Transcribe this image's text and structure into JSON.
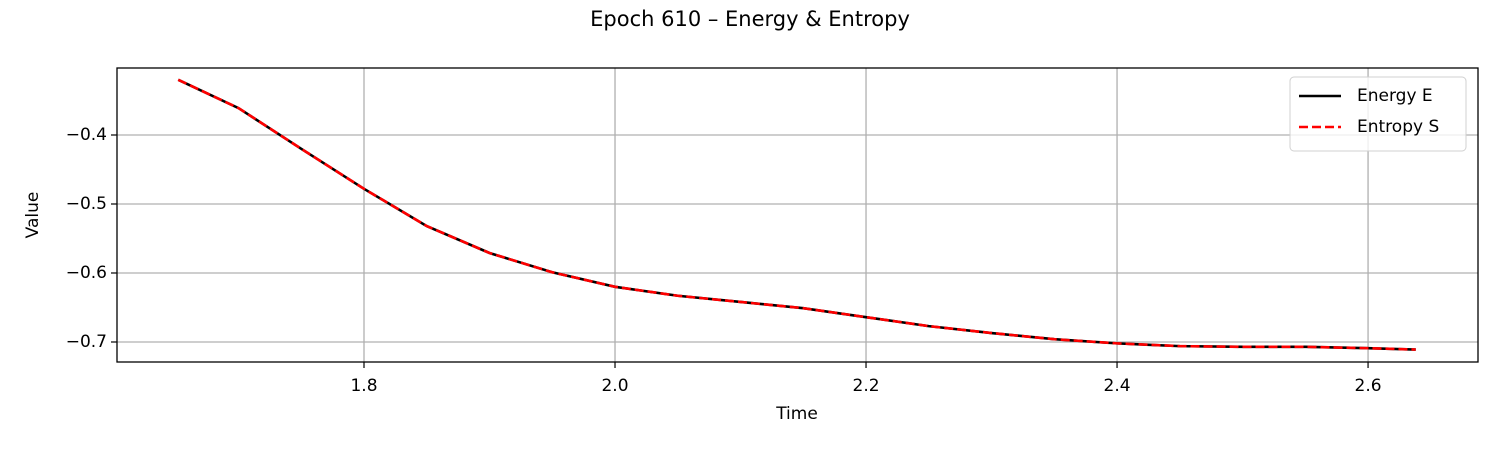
{
  "chart_data": {
    "type": "line",
    "title": "Epoch 610 – Energy & Entropy",
    "xlabel": "Time",
    "ylabel": "Value",
    "x": [
      1.652,
      1.7,
      1.75,
      1.8,
      1.85,
      1.9,
      1.95,
      2.0,
      2.05,
      2.1,
      2.15,
      2.2,
      2.25,
      2.3,
      2.35,
      2.4,
      2.45,
      2.5,
      2.55,
      2.6,
      2.638
    ],
    "series": [
      {
        "name": "Energy E",
        "color": "#000000",
        "dash": "solid",
        "values": [
          -0.32,
          -0.361,
          -0.42,
          -0.478,
          -0.532,
          -0.571,
          -0.599,
          -0.62,
          -0.633,
          -0.642,
          -0.651,
          -0.664,
          -0.677,
          -0.687,
          -0.696,
          -0.702,
          -0.706,
          -0.707,
          -0.707,
          -0.709,
          -0.711
        ]
      },
      {
        "name": "Entropy S",
        "color": "#ff0000",
        "dash": "dashed",
        "values": [
          -0.32,
          -0.361,
          -0.42,
          -0.478,
          -0.532,
          -0.571,
          -0.599,
          -0.62,
          -0.633,
          -0.642,
          -0.651,
          -0.664,
          -0.677,
          -0.687,
          -0.696,
          -0.702,
          -0.706,
          -0.707,
          -0.707,
          -0.709,
          -0.711
        ]
      }
    ],
    "xlim": [
      1.6032,
      2.6876
    ],
    "ylim": [
      -0.729,
      -0.3029
    ],
    "xticks": [
      1.8,
      {
        "value": 2.0,
        "label": "2.0"
      },
      2.2,
      2.4,
      2.6
    ],
    "yticks": [
      {
        "value": -0.4,
        "label": "−0.4"
      },
      {
        "value": -0.5,
        "label": "−0.5"
      },
      {
        "value": -0.6,
        "label": "−0.6"
      },
      {
        "value": -0.7,
        "label": "−0.7"
      }
    ],
    "grid": true,
    "legend": "upper right"
  }
}
